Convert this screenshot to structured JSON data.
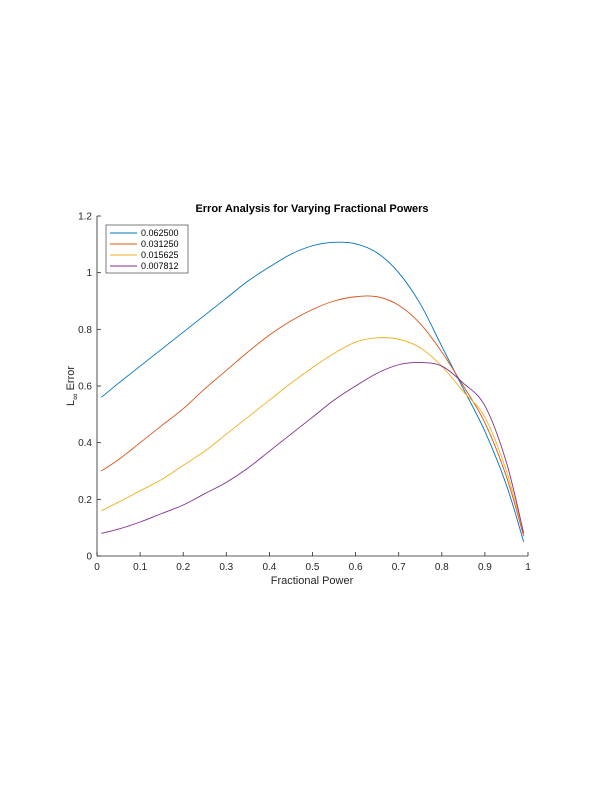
{
  "chart_data": {
    "type": "line",
    "title": "Error Analysis for Varying Fractional Powers",
    "xlabel": "Fractional Power",
    "ylabel": {
      "main": "L",
      "subscript": "∞",
      "suffix": " Error"
    },
    "xlim": [
      0,
      1
    ],
    "ylim": [
      0,
      1.2
    ],
    "xticks": [
      0,
      0.1,
      0.2,
      0.3,
      0.4,
      0.5,
      0.6,
      0.7,
      0.8,
      0.9,
      1
    ],
    "xtick_labels": [
      "0",
      "0.1",
      "0.2",
      "0.3",
      "0.4",
      "0.5",
      "0.6",
      "0.7",
      "0.8",
      "0.9",
      "1"
    ],
    "yticks": [
      0,
      0.2,
      0.4,
      0.6,
      0.8,
      1,
      1.2
    ],
    "ytick_labels": [
      "0",
      "0.2",
      "0.4",
      "0.6",
      "0.8",
      "1",
      "1.2"
    ],
    "grid": false,
    "legend_position": "top-left",
    "x": [
      0.01,
      0.05,
      0.1,
      0.15,
      0.2,
      0.25,
      0.3,
      0.35,
      0.4,
      0.45,
      0.5,
      0.55,
      0.6,
      0.65,
      0.7,
      0.75,
      0.8,
      0.85,
      0.9,
      0.95,
      0.99
    ],
    "series": [
      {
        "name": "0.062500",
        "color": "#0072BD",
        "values": [
          0.56,
          0.61,
          0.67,
          0.73,
          0.79,
          0.85,
          0.91,
          0.97,
          1.02,
          1.065,
          1.095,
          1.107,
          1.102,
          1.07,
          1.0,
          0.89,
          0.74,
          0.59,
          0.44,
          0.25,
          0.05
        ]
      },
      {
        "name": "0.031250",
        "color": "#D95319",
        "values": [
          0.3,
          0.34,
          0.4,
          0.46,
          0.52,
          0.59,
          0.655,
          0.72,
          0.78,
          0.83,
          0.87,
          0.9,
          0.915,
          0.915,
          0.885,
          0.82,
          0.72,
          0.6,
          0.47,
          0.28,
          0.07
        ]
      },
      {
        "name": "0.015625",
        "color": "#EDB120",
        "values": [
          0.16,
          0.19,
          0.23,
          0.27,
          0.32,
          0.37,
          0.43,
          0.49,
          0.55,
          0.61,
          0.665,
          0.715,
          0.755,
          0.77,
          0.765,
          0.735,
          0.67,
          0.58,
          0.49,
          0.3,
          0.08
        ]
      },
      {
        "name": "0.007812",
        "color": "#7E2F8E",
        "values": [
          0.08,
          0.095,
          0.12,
          0.15,
          0.18,
          0.22,
          0.26,
          0.31,
          0.37,
          0.43,
          0.49,
          0.55,
          0.6,
          0.645,
          0.675,
          0.683,
          0.67,
          0.61,
          0.53,
          0.33,
          0.08
        ]
      }
    ]
  }
}
